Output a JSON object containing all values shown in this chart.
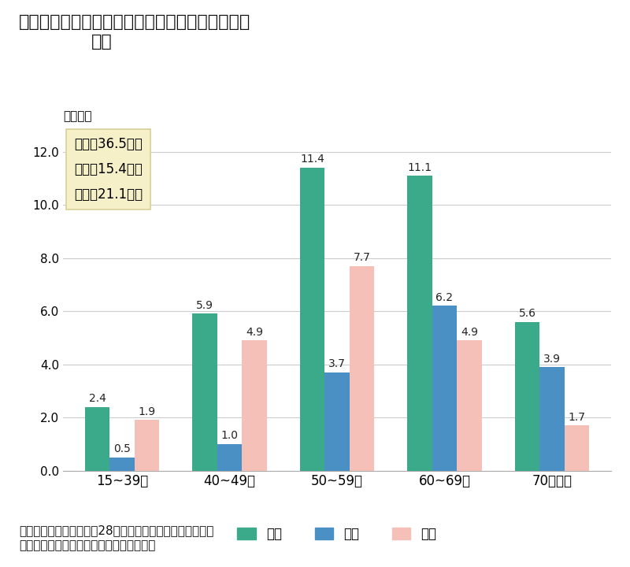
{
  "title_line1": "図９　仕事を持ちながら悪性新生物で通院してい",
  "title_line2": "る者",
  "ylabel": "（万人）",
  "categories": [
    "15~39歳",
    "40~49歳",
    "50~59歳",
    "60~69歳",
    "70歳以上"
  ],
  "series": {
    "総数": [
      2.4,
      5.9,
      11.4,
      11.1,
      5.6
    ],
    "男性": [
      0.5,
      1.0,
      3.7,
      6.2,
      3.9
    ],
    "女性": [
      1.9,
      4.9,
      7.7,
      4.9,
      1.7
    ]
  },
  "colors": {
    "総数": "#3aaa8a",
    "男性": "#4a90c4",
    "女性": "#f5c0b8"
  },
  "ylim": [
    0,
    12.8
  ],
  "yticks": [
    0.0,
    2.0,
    4.0,
    6.0,
    8.0,
    10.0,
    12.0
  ],
  "box_text": [
    "総数：36.5万人",
    "男性：15.4万人",
    "女性：21.1万人"
  ],
  "box_bg": "#f5f0c8",
  "box_edge": "#d8d09a",
  "source_line1": "出所：厚生労働省「平成28年国民生活基礎調査」を基に同",
  "source_line2": "省健康局にて特別集計したものを一部改変",
  "bar_width": 0.23,
  "legend_labels": [
    "総数",
    "男性",
    "女性"
  ]
}
